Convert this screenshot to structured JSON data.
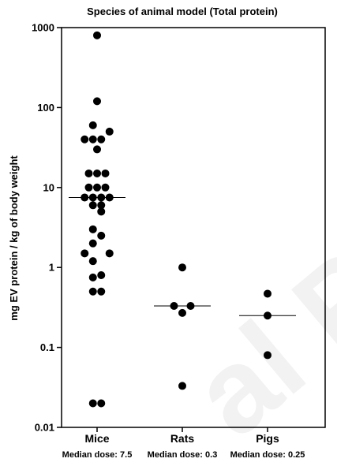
{
  "chart_data": {
    "type": "scatter",
    "title": "Species of animal model (Total protein)",
    "ylabel": "mg EV protein / kg of body weight",
    "xlabel": "",
    "y_scale": "log",
    "ylim": [
      0.01,
      1000
    ],
    "y_ticks": [
      {
        "value": 1000,
        "label": "1000"
      },
      {
        "value": 100,
        "label": "100"
      },
      {
        "value": 10,
        "label": "10"
      },
      {
        "value": 1,
        "label": "1"
      },
      {
        "value": 0.1,
        "label": "0.1"
      },
      {
        "value": 0.01,
        "label": "0.01"
      }
    ],
    "categories": [
      "Mice",
      "Rats",
      "Pigs"
    ],
    "median_labels": [
      "Median dose: 7.5",
      "Median dose: 0.3",
      "Median dose: 0.25"
    ],
    "medians": [
      7.5,
      0.33,
      0.25
    ],
    "groups": [
      {
        "category": "Mice",
        "points": [
          {
            "y": 800,
            "offset": 0
          },
          {
            "y": 120,
            "offset": 0
          },
          {
            "y": 60,
            "offset": -0.5
          },
          {
            "y": 50,
            "offset": 1.5
          },
          {
            "y": 40,
            "offset": -1.5
          },
          {
            "y": 40,
            "offset": -0.5
          },
          {
            "y": 40,
            "offset": 0.5
          },
          {
            "y": 30,
            "offset": 0
          },
          {
            "y": 15,
            "offset": -1
          },
          {
            "y": 15,
            "offset": 0
          },
          {
            "y": 15,
            "offset": 1
          },
          {
            "y": 10,
            "offset": -1
          },
          {
            "y": 10,
            "offset": 0
          },
          {
            "y": 10,
            "offset": 1
          },
          {
            "y": 7.5,
            "offset": -1.5
          },
          {
            "y": 7.5,
            "offset": -0.5
          },
          {
            "y": 7.5,
            "offset": 0.5
          },
          {
            "y": 7.5,
            "offset": 1.5
          },
          {
            "y": 6,
            "offset": -0.5
          },
          {
            "y": 6,
            "offset": 0.5
          },
          {
            "y": 5,
            "offset": 0.5
          },
          {
            "y": 3,
            "offset": -0.5
          },
          {
            "y": 2.5,
            "offset": 0.5
          },
          {
            "y": 2,
            "offset": -0.5
          },
          {
            "y": 1.5,
            "offset": -1.5
          },
          {
            "y": 1.5,
            "offset": 1.5
          },
          {
            "y": 1.2,
            "offset": -0.5
          },
          {
            "y": 0.8,
            "offset": 0.5
          },
          {
            "y": 0.75,
            "offset": -0.5
          },
          {
            "y": 0.5,
            "offset": -0.5
          },
          {
            "y": 0.5,
            "offset": 0.5
          },
          {
            "y": 0.02,
            "offset": -0.5
          },
          {
            "y": 0.02,
            "offset": 0.5
          }
        ]
      },
      {
        "category": "Rats",
        "points": [
          {
            "y": 1,
            "offset": 0
          },
          {
            "y": 0.33,
            "offset": -1
          },
          {
            "y": 0.33,
            "offset": 1
          },
          {
            "y": 0.27,
            "offset": 0
          },
          {
            "y": 0.033,
            "offset": 0
          }
        ]
      },
      {
        "category": "Pigs",
        "points": [
          {
            "y": 0.47,
            "offset": 0
          },
          {
            "y": 0.25,
            "offset": 0
          },
          {
            "y": 0.08,
            "offset": 0
          }
        ]
      }
    ],
    "marker_color": "#000000",
    "watermark_color": "#f0f0f0"
  }
}
